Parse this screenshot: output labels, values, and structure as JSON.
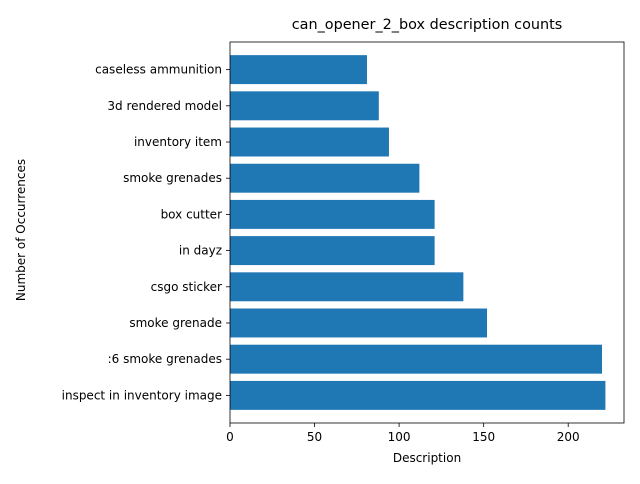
{
  "chart_data": {
    "type": "bar",
    "orientation": "horizontal",
    "title": "can_opener_2_box description counts",
    "xlabel": "Description",
    "ylabel": "Number of Occurrences",
    "categories": [
      "inspect in inventory image",
      ":6 smoke grenades",
      "smoke grenade",
      "csgo sticker",
      "in dayz",
      "box cutter",
      "smoke grenades",
      "inventory item",
      "3d rendered model",
      "caseless ammunition"
    ],
    "values": [
      222,
      220,
      152,
      138,
      121,
      121,
      112,
      94,
      88,
      81
    ],
    "xlim": [
      0,
      233
    ],
    "xticks": [
      0,
      50,
      100,
      150,
      200
    ],
    "grid": false,
    "bar_color": "#1f77b4"
  }
}
